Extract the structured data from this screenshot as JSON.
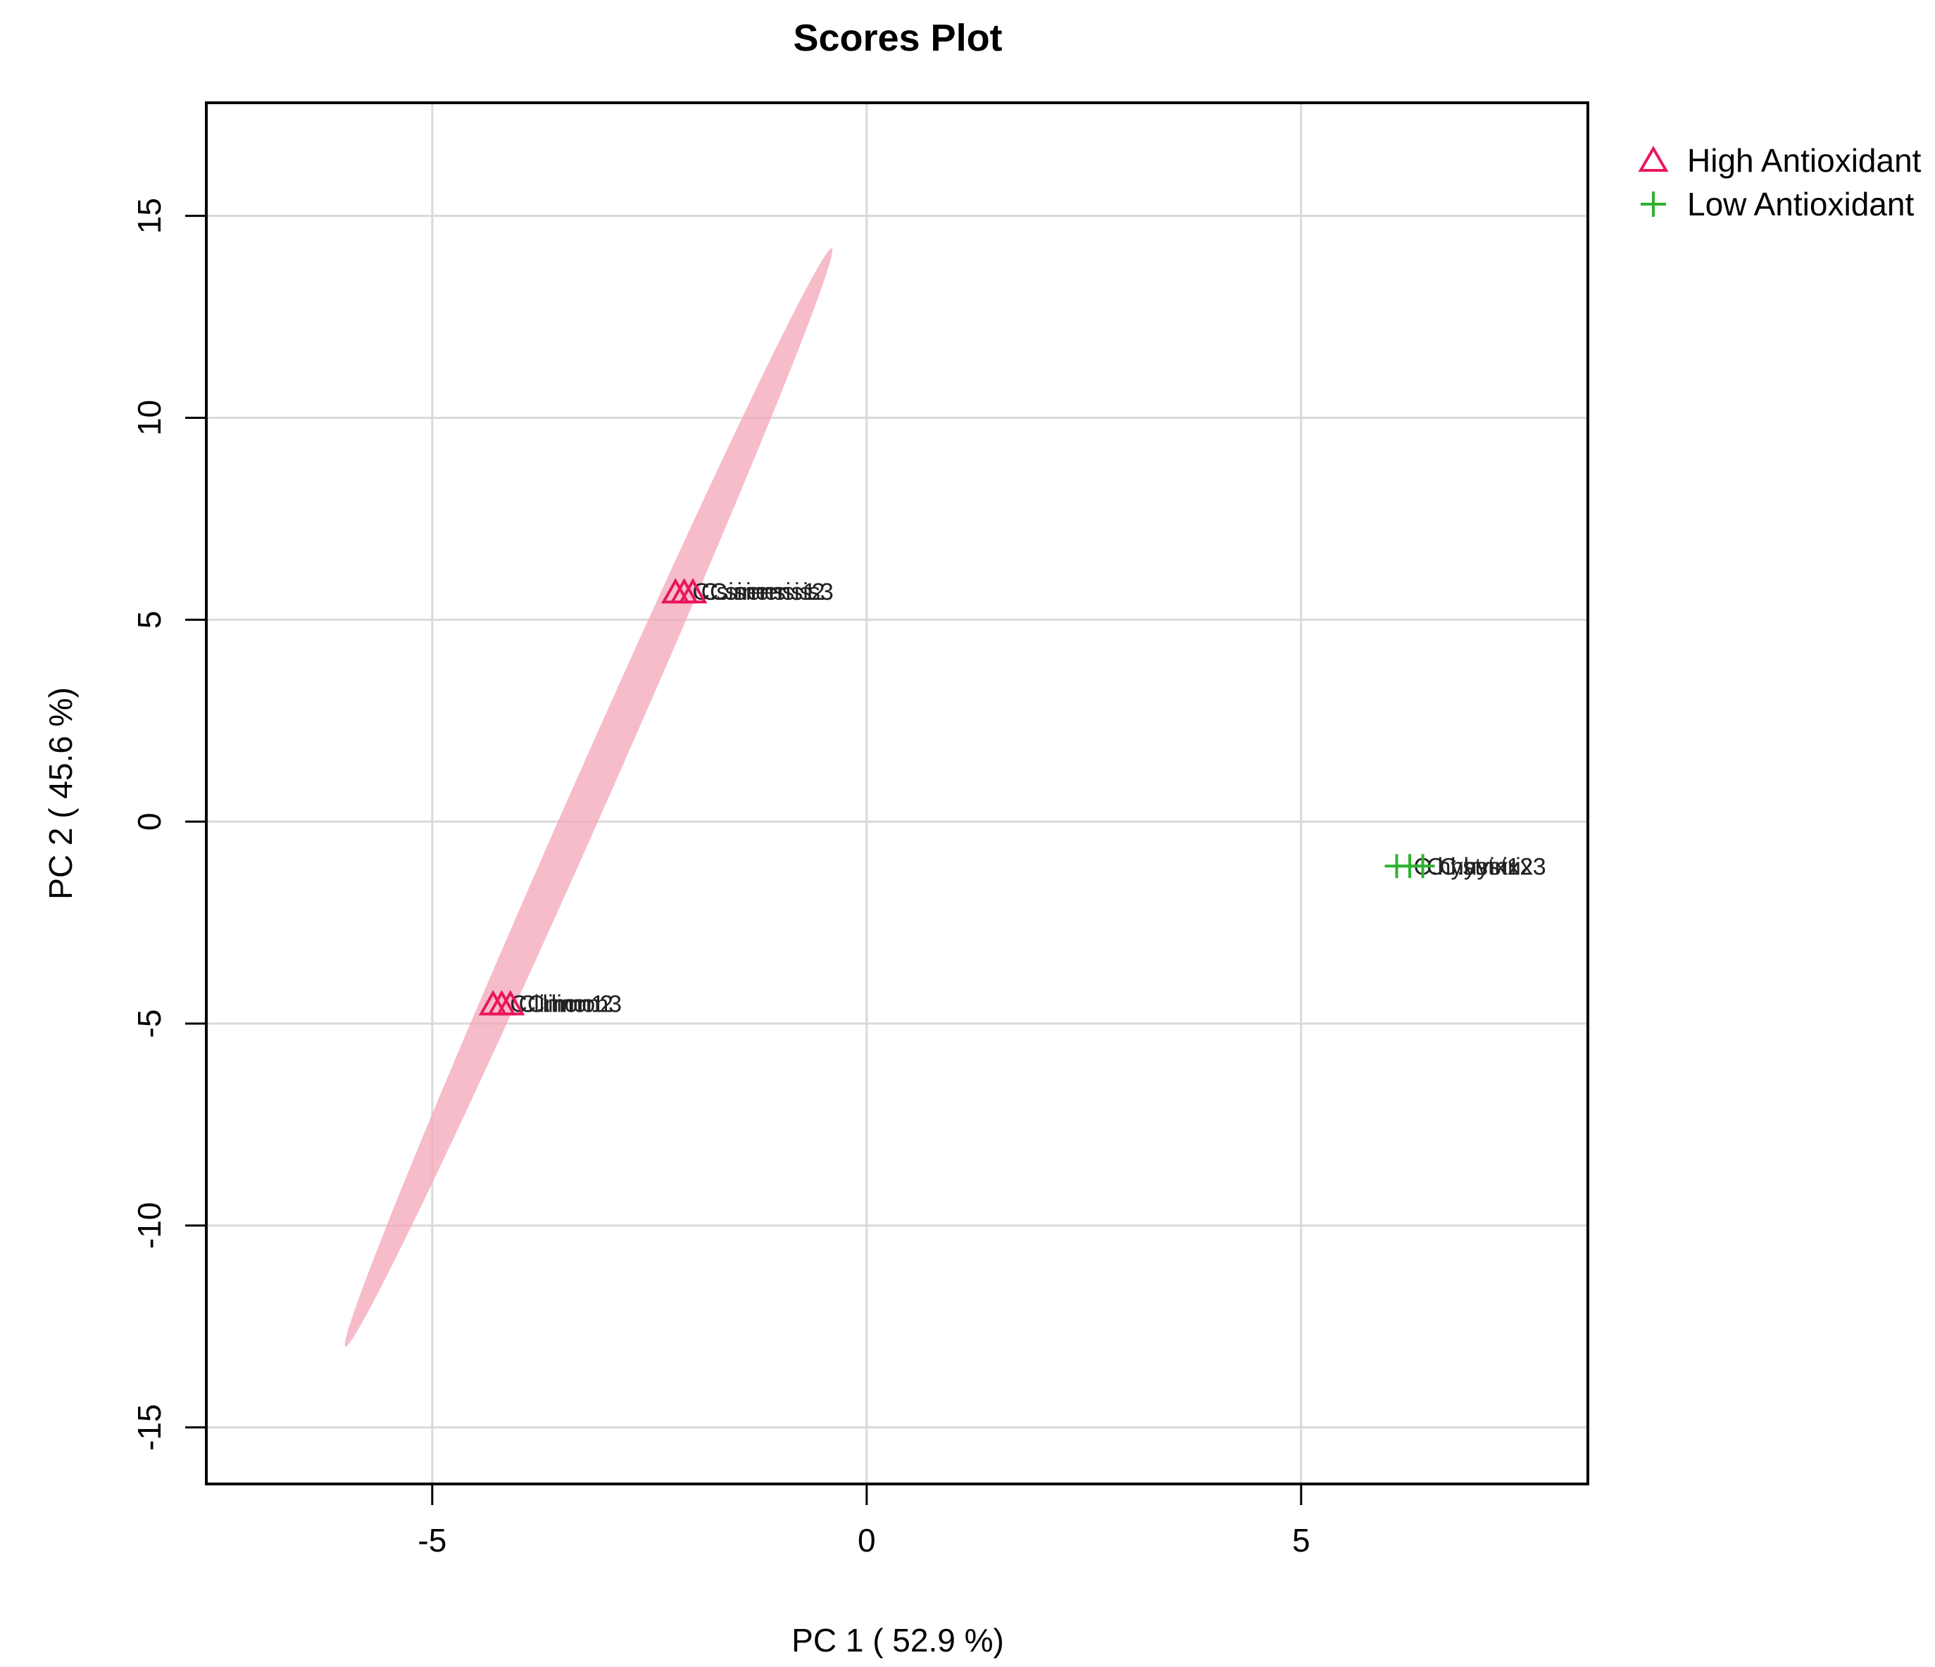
{
  "chart_data": {
    "type": "scatter",
    "title": "Scores Plot",
    "xlabel": "PC 1 ( 52.9 %)",
    "ylabel": "PC 2 ( 45.6 %)",
    "xlim": [
      -7.6,
      8.3
    ],
    "ylim": [
      -16.4,
      17.8
    ],
    "x_ticks": [
      -5,
      0,
      5
    ],
    "y_ticks": [
      -15,
      -10,
      -5,
      0,
      5,
      10,
      15
    ],
    "grid": true,
    "legend_position": "top-right, outside plot",
    "series": [
      {
        "name": "High Antioxidant",
        "marker": "triangle-open",
        "color": "#e8175d",
        "points": [
          {
            "x": -2.2,
            "y": 5.7,
            "label": "C.sinensis1"
          },
          {
            "x": -2.1,
            "y": 5.7,
            "label": "C.sinensis2"
          },
          {
            "x": -2.0,
            "y": 5.7,
            "label": "C.sinensis3"
          },
          {
            "x": -4.3,
            "y": -4.5,
            "label": "C.limon1"
          },
          {
            "x": -4.2,
            "y": -4.5,
            "label": "C.limon2"
          },
          {
            "x": -4.1,
            "y": -4.5,
            "label": "C.limon3"
          }
        ],
        "ellipse": {
          "center_x": -3.2,
          "center_y": 0.6,
          "extreme_a": [
            -0.4,
            14.2
          ],
          "extreme_b": [
            -6.0,
            -13.0
          ],
          "color": "#f4a6b8"
        }
      },
      {
        "name": "Low Antioxidant",
        "marker": "plus",
        "color": "#2fb22f",
        "points": [
          {
            "x": 6.1,
            "y": -1.1,
            "label": "C.hystrix1"
          },
          {
            "x": 6.25,
            "y": -1.1,
            "label": "C.hystrix2"
          },
          {
            "x": 6.4,
            "y": -1.1,
            "label": "C.hystrix3"
          }
        ]
      }
    ]
  }
}
